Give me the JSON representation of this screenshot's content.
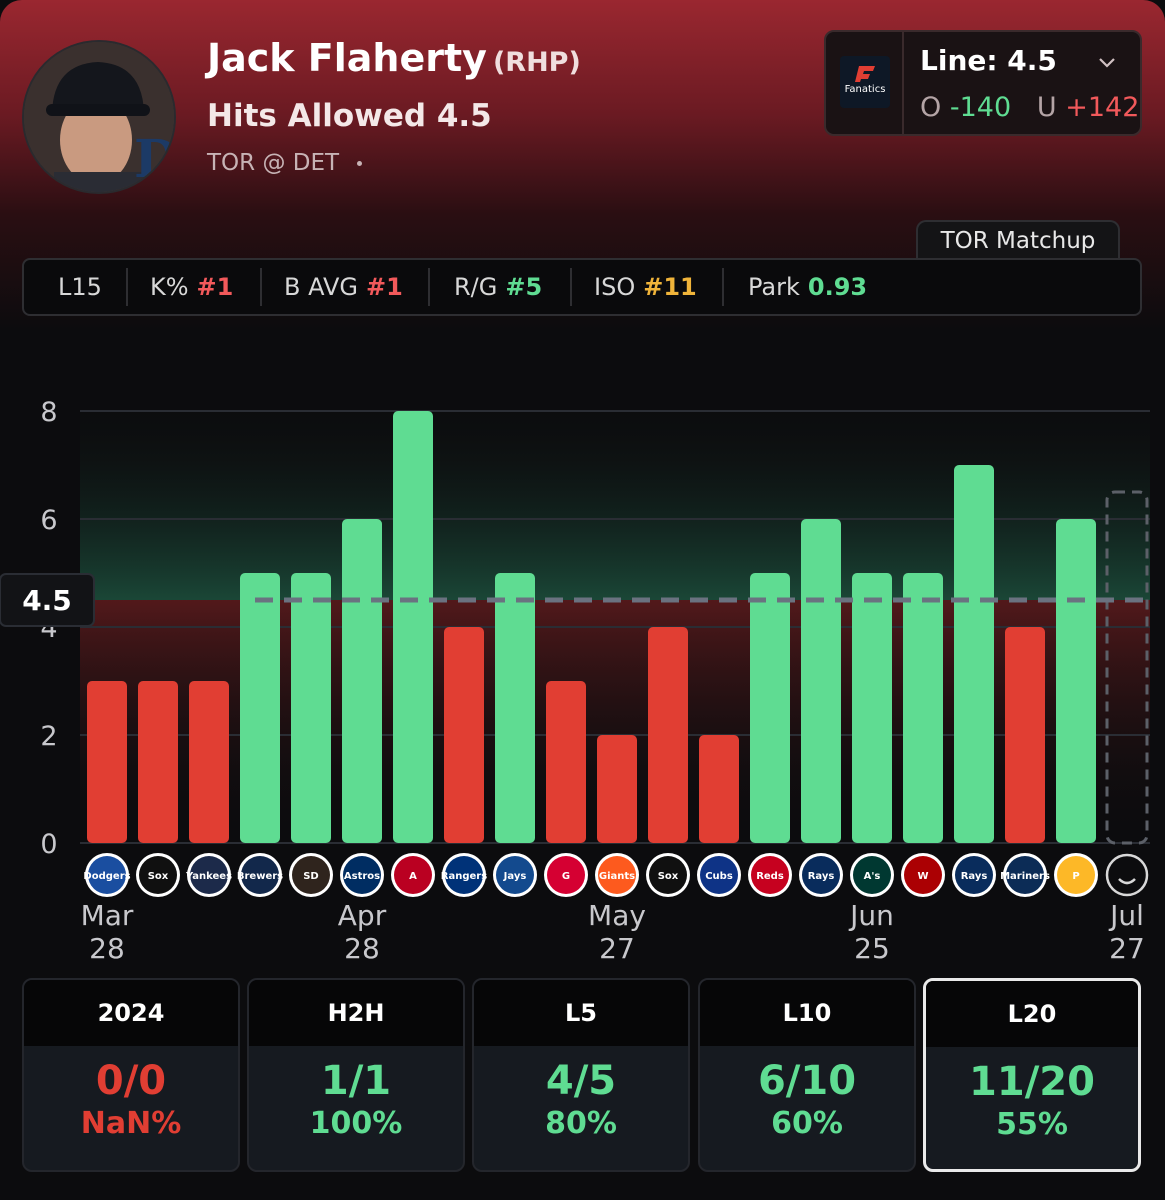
{
  "player": {
    "name": "Jack Flaherty",
    "position": "(RHP)",
    "prop": "Hits Allowed 4.5",
    "matchup": "TOR @ DET"
  },
  "line_box": {
    "book": "Fanatics",
    "line_label": "Line: 4.5",
    "over_prefix": "O",
    "over_odds": "-140",
    "under_prefix": "U",
    "under_odds": "+142"
  },
  "matchup_tab": "TOR Matchup",
  "stats": [
    {
      "label": "L15",
      "value": "",
      "color": "#ffffff"
    },
    {
      "label": "K%",
      "value": "#1",
      "color": "#f2595b"
    },
    {
      "label": "B AVG",
      "value": "#1",
      "color": "#f2595b"
    },
    {
      "label": "R/G",
      "value": "#5",
      "color": "#5fdc92"
    },
    {
      "label": "ISO",
      "value": "#11",
      "color": "#f0b43a"
    },
    {
      "label": "Park",
      "value": "0.93",
      "color": "#5fdc92"
    }
  ],
  "chart_data": {
    "type": "bar",
    "ylim": [
      0,
      8
    ],
    "yticks": [
      "0",
      "2",
      "4",
      "6",
      "8"
    ],
    "line": 4.5,
    "line_label": "4.5",
    "values": [
      3,
      3,
      3,
      5,
      5,
      6,
      8,
      4,
      5,
      3,
      2,
      4,
      2,
      5,
      6,
      5,
      5,
      7,
      4,
      6
    ],
    "opponents": [
      "LAD",
      "CWS",
      "NYY",
      "MIL",
      "SD",
      "HOU",
      "LAA",
      "TEX",
      "TOR",
      "CLE",
      "SF",
      "CWS",
      "CHC",
      "CIN",
      "TB",
      "OAK",
      "WSH",
      "TB",
      "SEA",
      "PIT"
    ],
    "logo_labels": [
      "Dodgers",
      "Sox",
      "Yankees",
      "Brewers",
      "SD",
      "Astros",
      "A",
      "Rangers",
      "Jays",
      "G",
      "Giants",
      "Sox",
      "Cubs",
      "Reds",
      "Rays",
      "A's",
      "W",
      "Rays",
      "Mariners",
      "P"
    ],
    "x_labels": [
      {
        "month": "Mar",
        "day": "28",
        "index": 0
      },
      {
        "month": "Apr",
        "day": "28",
        "index": 5
      },
      {
        "month": "May",
        "day": "27",
        "index": 10
      },
      {
        "month": "Jun",
        "day": "25",
        "index": 15
      },
      {
        "month": "Jul",
        "day": "27",
        "index": 20
      }
    ],
    "over_color": "#5fdc92",
    "under_color": "#e13e33"
  },
  "summary": [
    {
      "label": "2024",
      "fraction": "0/0",
      "percent": "NaN%",
      "color": "#e13e33",
      "active": false
    },
    {
      "label": "H2H",
      "fraction": "1/1",
      "percent": "100%",
      "color": "#5fdc92",
      "active": false
    },
    {
      "label": "L5",
      "fraction": "4/5",
      "percent": "80%",
      "color": "#5fdc92",
      "active": false
    },
    {
      "label": "L10",
      "fraction": "6/10",
      "percent": "60%",
      "color": "#5fdc92",
      "active": false
    },
    {
      "label": "L20",
      "fraction": "11/20",
      "percent": "55%",
      "color": "#5fdc92",
      "active": true
    }
  ]
}
